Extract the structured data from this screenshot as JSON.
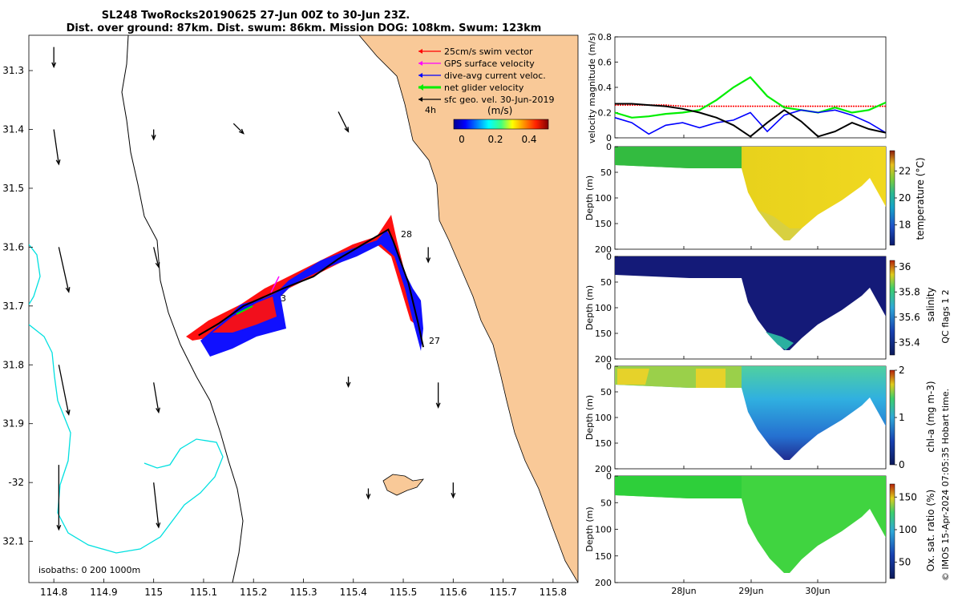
{
  "title": {
    "line1": "SL248 TwoRocks20190625 27-Jun 00Z to 30-Jun 23Z.",
    "line2": "Dist. over ground: 87km. Dist. swum: 86km. Mission DOG: 108km. Swum: 123km"
  },
  "map": {
    "lon_ticks": [
      "114.8",
      "114.9",
      "115",
      "115.1",
      "115.2",
      "115.3",
      "115.4",
      "115.5",
      "115.6",
      "115.7",
      "115.8"
    ],
    "lat_ticks": [
      "31.3",
      "31.4",
      "31.5",
      "31.6",
      "31.7",
      "31.8",
      "31.9",
      "-32",
      "32.1"
    ],
    "lon_range": [
      114.75,
      115.85
    ],
    "lat_range": [
      31.24,
      32.17
    ],
    "legend": [
      {
        "label": "25cm/s swim vector",
        "color": "#ff0000"
      },
      {
        "label": "GPS surface velocity",
        "color": "#ff00ff"
      },
      {
        "label": "dive-avg current veloc.",
        "color": "#0000ff"
      },
      {
        "label": "net glider velocity",
        "color": "#00ee00"
      },
      {
        "label": "sfc geo. vel. 30-Jun-2019",
        "color": "#000000"
      }
    ],
    "arrow_scale_label": "4h",
    "colorbar_unit": "(m/s)",
    "colorbar_ticks": [
      "0",
      "0.2",
      "0.4"
    ],
    "annotations": [
      "28",
      "27",
      "3"
    ],
    "isobaths_label": "isobaths: 0   200  1000m",
    "track_points": [
      {
        "lon": 115.54,
        "lat": 31.77
      },
      {
        "lon": 115.53,
        "lat": 31.73
      },
      {
        "lon": 115.51,
        "lat": 31.66
      },
      {
        "lon": 115.48,
        "lat": 31.59
      },
      {
        "lon": 115.47,
        "lat": 31.57
      },
      {
        "lon": 115.43,
        "lat": 31.59
      },
      {
        "lon": 115.37,
        "lat": 31.62
      },
      {
        "lon": 115.32,
        "lat": 31.65
      },
      {
        "lon": 115.26,
        "lat": 31.67
      },
      {
        "lon": 115.18,
        "lat": 31.7
      },
      {
        "lon": 115.13,
        "lat": 31.73
      },
      {
        "lon": 115.09,
        "lat": 31.75
      }
    ],
    "current_vectors": [
      {
        "lon": 114.8,
        "lat": 31.26,
        "dlon": 0.0,
        "dlat": 0.04
      },
      {
        "lon": 114.8,
        "lat": 31.4,
        "dlon": 0.01,
        "dlat": 0.07
      },
      {
        "lon": 114.81,
        "lat": 31.6,
        "dlon": 0.02,
        "dlat": 0.09
      },
      {
        "lon": 114.81,
        "lat": 31.8,
        "dlon": 0.02,
        "dlat": 0.1
      },
      {
        "lon": 114.81,
        "lat": 31.97,
        "dlon": 0.0,
        "dlat": 0.13
      },
      {
        "lon": 115.0,
        "lat": 31.4,
        "dlon": 0.0,
        "dlat": 0.02
      },
      {
        "lon": 115.0,
        "lat": 31.6,
        "dlon": 0.01,
        "dlat": 0.04
      },
      {
        "lon": 115.0,
        "lat": 31.83,
        "dlon": 0.01,
        "dlat": 0.06
      },
      {
        "lon": 115.0,
        "lat": 32.0,
        "dlon": 0.01,
        "dlat": 0.09
      },
      {
        "lon": 115.16,
        "lat": 31.39,
        "dlon": 0.02,
        "dlat": 0.02
      },
      {
        "lon": 115.37,
        "lat": 31.37,
        "dlon": 0.02,
        "dlat": 0.04
      },
      {
        "lon": 115.55,
        "lat": 31.6,
        "dlon": 0.0,
        "dlat": 0.03
      },
      {
        "lon": 115.57,
        "lat": 31.83,
        "dlon": 0.0,
        "dlat": 0.05
      },
      {
        "lon": 115.39,
        "lat": 31.82,
        "dlon": 0.0,
        "dlat": 0.02
      },
      {
        "lon": 115.43,
        "lat": 32.01,
        "dlon": 0.0,
        "dlat": 0.02
      },
      {
        "lon": 115.6,
        "lat": 32.0,
        "dlon": 0.0,
        "dlat": 0.03
      }
    ]
  },
  "timeseries": {
    "ylabel": "velocity magnitude (m/s)",
    "yticks": [
      "0",
      "0.2",
      "0.4",
      "0.6",
      "0.8"
    ],
    "ylim": [
      0,
      0.8
    ],
    "x": [
      0,
      0.25,
      0.5,
      0.75,
      1,
      1.25,
      1.5,
      1.75,
      2,
      2.25,
      2.5,
      2.75,
      3,
      3.25,
      3.5,
      3.75,
      4
    ],
    "series": [
      {
        "name": "swim",
        "color": "#ff0000",
        "values": [
          0.26,
          0.26,
          0.26,
          0.26,
          0.25,
          0.25,
          0.25,
          0.25,
          0.25,
          0.25,
          0.25,
          0.25,
          0.25,
          0.25,
          0.25,
          0.25,
          0.25
        ]
      },
      {
        "name": "net glider",
        "color": "#00ee00",
        "values": [
          0.2,
          0.16,
          0.17,
          0.19,
          0.2,
          0.22,
          0.3,
          0.4,
          0.48,
          0.33,
          0.24,
          0.22,
          0.2,
          0.24,
          0.2,
          0.22,
          0.28
        ]
      },
      {
        "name": "dive-avg current",
        "color": "#0000ff",
        "values": [
          0.16,
          0.12,
          0.03,
          0.1,
          0.12,
          0.08,
          0.12,
          0.14,
          0.2,
          0.05,
          0.18,
          0.22,
          0.2,
          0.22,
          0.18,
          0.12,
          0.04
        ]
      },
      {
        "name": "sfc geo",
        "color": "#000000",
        "values": [
          0.27,
          0.27,
          0.26,
          0.25,
          0.23,
          0.2,
          0.16,
          0.1,
          0.01,
          0.12,
          0.22,
          0.13,
          0.01,
          0.05,
          0.12,
          0.07,
          0.04
        ]
      }
    ]
  },
  "sections": [
    {
      "name": "temperature",
      "ylabel": "Depth (m)",
      "cbar_label": "temperature (°C)",
      "cbar_ticks": [
        "18",
        "20",
        "22"
      ],
      "cbar_range": [
        16.5,
        23.5
      ]
    },
    {
      "name": "salinity",
      "ylabel": "Depth (m)",
      "cbar_label": "salinity",
      "cbar_ticks": [
        "35.4",
        "35.6",
        "35.8",
        "36"
      ],
      "cbar_range": [
        35.3,
        36.05
      ]
    },
    {
      "name": "chl-a",
      "ylabel": "Depth (m)",
      "cbar_label": "chl-a (mg m-3)",
      "cbar_ticks": [
        "0",
        "1",
        "2"
      ],
      "cbar_range": [
        0,
        2
      ]
    },
    {
      "name": "oxygen",
      "ylabel": "Depth (m)",
      "cbar_label": "Ox. sat. ratio (%)",
      "cbar_ticks": [
        "50",
        "100",
        "150"
      ],
      "cbar_range": [
        25,
        170
      ]
    }
  ],
  "depth_ticks": [
    "0",
    "50",
    "100",
    "150",
    "200"
  ],
  "time_ticks": [
    "28Jun",
    "29Jun",
    "30Jun"
  ],
  "qc_text": "QC flags 1  2",
  "credit": "© IMOS 15-Apr-2024 07:05:35 Hobart time."
}
